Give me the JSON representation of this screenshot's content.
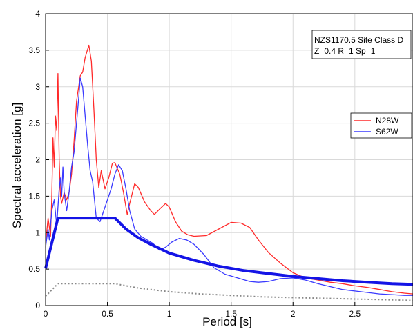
{
  "chart_data": {
    "type": "line",
    "xlabel": "Period [s]",
    "ylabel": "Spectral acceleration [g]",
    "xlim": [
      0,
      2.97
    ],
    "ylim": [
      0,
      4
    ],
    "x_ticks": [
      "0",
      "0.5",
      "1",
      "1.5",
      "2",
      "2.5"
    ],
    "x_tick_values": [
      0,
      0.5,
      1,
      1.5,
      2,
      2.5
    ],
    "y_ticks": [
      "0",
      "0.5",
      "1",
      "1.5",
      "2",
      "2.5",
      "3",
      "3.5",
      "4"
    ],
    "y_tick_values": [
      0,
      0.5,
      1,
      1.5,
      2,
      2.5,
      3,
      3.5,
      4
    ],
    "grid": true,
    "legend_position": "right",
    "annotation": [
      "NZS1170.5 Site Class D",
      "Z=0.4 R=1 Sp=1"
    ],
    "colors": {
      "red": "#ff2a2a",
      "blue": "#3a3aff",
      "design": "#1414e6",
      "dotted": "#888888",
      "grid": "#d9d9d9"
    },
    "series": [
      {
        "name": "N28W",
        "legend": true,
        "style": "red",
        "points": [
          [
            0,
            0.85
          ],
          [
            0.02,
            1.2
          ],
          [
            0.04,
            0.95
          ],
          [
            0.05,
            1.5
          ],
          [
            0.06,
            2.3
          ],
          [
            0.07,
            1.9
          ],
          [
            0.08,
            2.6
          ],
          [
            0.09,
            2.4
          ],
          [
            0.1,
            3.18
          ],
          [
            0.11,
            2.0
          ],
          [
            0.12,
            1.5
          ],
          [
            0.13,
            1.4
          ],
          [
            0.15,
            1.55
          ],
          [
            0.17,
            1.45
          ],
          [
            0.19,
            1.55
          ],
          [
            0.21,
            1.8
          ],
          [
            0.23,
            2.25
          ],
          [
            0.25,
            2.8
          ],
          [
            0.28,
            3.15
          ],
          [
            0.3,
            3.2
          ],
          [
            0.32,
            3.4
          ],
          [
            0.35,
            3.57
          ],
          [
            0.37,
            3.35
          ],
          [
            0.39,
            2.7
          ],
          [
            0.41,
            2.0
          ],
          [
            0.43,
            1.62
          ],
          [
            0.45,
            1.85
          ],
          [
            0.48,
            1.6
          ],
          [
            0.51,
            1.75
          ],
          [
            0.54,
            1.95
          ],
          [
            0.56,
            1.96
          ],
          [
            0.6,
            1.8
          ],
          [
            0.63,
            1.55
          ],
          [
            0.66,
            1.25
          ],
          [
            0.68,
            1.4
          ],
          [
            0.72,
            1.67
          ],
          [
            0.75,
            1.62
          ],
          [
            0.8,
            1.42
          ],
          [
            0.85,
            1.3
          ],
          [
            0.88,
            1.25
          ],
          [
            0.92,
            1.32
          ],
          [
            0.97,
            1.4
          ],
          [
            1.0,
            1.35
          ],
          [
            1.05,
            1.15
          ],
          [
            1.1,
            1.02
          ],
          [
            1.15,
            0.97
          ],
          [
            1.2,
            0.95
          ],
          [
            1.3,
            0.96
          ],
          [
            1.4,
            1.05
          ],
          [
            1.5,
            1.14
          ],
          [
            1.58,
            1.13
          ],
          [
            1.65,
            1.07
          ],
          [
            1.72,
            0.9
          ],
          [
            1.8,
            0.73
          ],
          [
            1.9,
            0.58
          ],
          [
            2.0,
            0.45
          ],
          [
            2.1,
            0.38
          ],
          [
            2.2,
            0.35
          ],
          [
            2.3,
            0.32
          ],
          [
            2.4,
            0.3
          ],
          [
            2.5,
            0.27
          ],
          [
            2.6,
            0.25
          ],
          [
            2.7,
            0.22
          ],
          [
            2.8,
            0.19
          ],
          [
            2.9,
            0.17
          ],
          [
            2.97,
            0.16
          ]
        ]
      },
      {
        "name": "S62W",
        "legend": true,
        "style": "blue",
        "points": [
          [
            0,
            0.8
          ],
          [
            0.02,
            1.05
          ],
          [
            0.03,
            0.9
          ],
          [
            0.05,
            1.3
          ],
          [
            0.07,
            1.45
          ],
          [
            0.09,
            1.1
          ],
          [
            0.11,
            1.6
          ],
          [
            0.12,
            1.75
          ],
          [
            0.13,
            1.5
          ],
          [
            0.14,
            1.9
          ],
          [
            0.15,
            1.55
          ],
          [
            0.17,
            1.3
          ],
          [
            0.19,
            1.55
          ],
          [
            0.21,
            1.9
          ],
          [
            0.23,
            2.1
          ],
          [
            0.25,
            2.5
          ],
          [
            0.27,
            2.9
          ],
          [
            0.28,
            3.12
          ],
          [
            0.3,
            3.0
          ],
          [
            0.32,
            2.6
          ],
          [
            0.34,
            2.2
          ],
          [
            0.36,
            1.85
          ],
          [
            0.38,
            1.7
          ],
          [
            0.41,
            1.2
          ],
          [
            0.44,
            1.15
          ],
          [
            0.47,
            1.3
          ],
          [
            0.5,
            1.45
          ],
          [
            0.53,
            1.6
          ],
          [
            0.56,
            1.8
          ],
          [
            0.59,
            1.93
          ],
          [
            0.62,
            1.85
          ],
          [
            0.65,
            1.6
          ],
          [
            0.68,
            1.3
          ],
          [
            0.72,
            1.05
          ],
          [
            0.77,
            0.95
          ],
          [
            0.82,
            0.9
          ],
          [
            0.87,
            0.85
          ],
          [
            0.92,
            0.76
          ],
          [
            0.97,
            0.8
          ],
          [
            1.02,
            0.87
          ],
          [
            1.08,
            0.92
          ],
          [
            1.14,
            0.9
          ],
          [
            1.2,
            0.84
          ],
          [
            1.28,
            0.7
          ],
          [
            1.36,
            0.52
          ],
          [
            1.45,
            0.43
          ],
          [
            1.55,
            0.38
          ],
          [
            1.65,
            0.33
          ],
          [
            1.72,
            0.32
          ],
          [
            1.8,
            0.33
          ],
          [
            1.9,
            0.37
          ],
          [
            2.0,
            0.38
          ],
          [
            2.1,
            0.35
          ],
          [
            2.2,
            0.3
          ],
          [
            2.3,
            0.26
          ],
          [
            2.4,
            0.22
          ],
          [
            2.5,
            0.2
          ],
          [
            2.6,
            0.18
          ],
          [
            2.7,
            0.16
          ],
          [
            2.8,
            0.15
          ],
          [
            2.9,
            0.14
          ],
          [
            2.97,
            0.14
          ]
        ]
      },
      {
        "name": "",
        "legend": false,
        "style": "design",
        "points": [
          [
            0,
            0.51
          ],
          [
            0.1,
            1.2
          ],
          [
            0.56,
            1.2
          ],
          [
            0.65,
            1.05
          ],
          [
            0.75,
            0.93
          ],
          [
            0.85,
            0.84
          ],
          [
            1.0,
            0.72
          ],
          [
            1.2,
            0.62
          ],
          [
            1.4,
            0.54
          ],
          [
            1.6,
            0.48
          ],
          [
            1.8,
            0.44
          ],
          [
            2.0,
            0.4
          ],
          [
            2.2,
            0.37
          ],
          [
            2.4,
            0.34
          ],
          [
            2.6,
            0.32
          ],
          [
            2.8,
            0.3
          ],
          [
            2.97,
            0.29
          ]
        ]
      },
      {
        "name": "",
        "legend": false,
        "style": "dotted",
        "points": [
          [
            0,
            0.13
          ],
          [
            0.1,
            0.3
          ],
          [
            0.56,
            0.3
          ],
          [
            0.75,
            0.24
          ],
          [
            1.0,
            0.19
          ],
          [
            1.25,
            0.16
          ],
          [
            1.5,
            0.14
          ],
          [
            1.75,
            0.12
          ],
          [
            2.0,
            0.11
          ],
          [
            2.25,
            0.1
          ],
          [
            2.5,
            0.09
          ],
          [
            2.75,
            0.08
          ],
          [
            2.97,
            0.07
          ]
        ]
      }
    ]
  }
}
